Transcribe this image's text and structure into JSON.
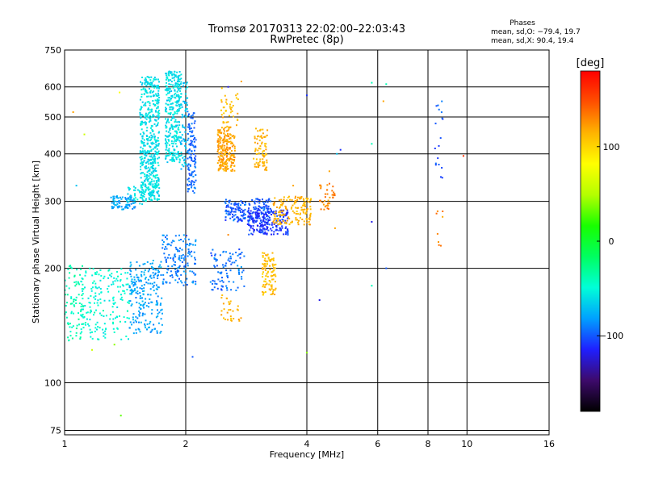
{
  "chart_data": {
    "type": "scatter",
    "title": "Tromsø 20170313 22:02:00–22:03:43",
    "subtitle": "RwPretec (8p)",
    "xlabel": "Frequency [MHz]",
    "ylabel": "Stationary phase Virtual Height [km]",
    "x_scale": "log",
    "y_scale": "log",
    "xlim": [
      1,
      16
    ],
    "ylim": [
      73,
      750
    ],
    "x_ticks": [
      1,
      2,
      4,
      6,
      8,
      10,
      16
    ],
    "y_ticks": [
      75,
      100,
      200,
      300,
      400,
      500,
      600,
      750
    ],
    "grid": true,
    "stats": {
      "heading": "Phases",
      "line1": "mean, sd,O: −79.4, 19.7",
      "line2": "mean, sd,X:  90.4, 19.4"
    },
    "colorbar": {
      "label": "[deg]",
      "range": [
        -180,
        180
      ],
      "ticks": [
        100,
        0,
        -100
      ],
      "tick_labels": [
        "100",
        "0",
        "−100"
      ],
      "colors": [
        "#000000",
        "#3d0a6b",
        "#1f1fff",
        "#00a0ff",
        "#00ffd8",
        "#00ff60",
        "#18ff00",
        "#b4ff00",
        "#ffff00",
        "#ffb400",
        "#ff5000",
        "#ff0000"
      ]
    },
    "clusters": [
      {
        "x": [
          1.54,
          1.72
        ],
        "y": [
          300,
          640
        ],
        "phase": -60,
        "n": 520
      },
      {
        "x": [
          1.78,
          1.95
        ],
        "y": [
          380,
          660
        ],
        "phase": -60,
        "n": 320
      },
      {
        "x": [
          1.94,
          2.02
        ],
        "y": [
          350,
          620
        ],
        "phase": -70,
        "n": 60
      },
      {
        "x": [
          2.02,
          2.12
        ],
        "y": [
          310,
          520
        ],
        "phase": -95,
        "n": 120
      },
      {
        "x": [
          2.4,
          2.65
        ],
        "y": [
          360,
          470
        ],
        "phase": 120,
        "n": 220
      },
      {
        "x": [
          2.45,
          2.7
        ],
        "y": [
          470,
          600
        ],
        "phase": 110,
        "n": 40
      },
      {
        "x": [
          2.95,
          3.2
        ],
        "y": [
          360,
          470
        ],
        "phase": 115,
        "n": 80
      },
      {
        "x": [
          1.3,
          1.5
        ],
        "y": [
          285,
          310
        ],
        "phase": -80,
        "n": 80
      },
      {
        "x": [
          1.43,
          1.62
        ],
        "y": [
          295,
          330
        ],
        "phase": -60,
        "n": 40
      },
      {
        "x": [
          2.5,
          3.25
        ],
        "y": [
          265,
          305
        ],
        "phase": -100,
        "n": 200
      },
      {
        "x": [
          2.85,
          3.6
        ],
        "y": [
          245,
          285
        ],
        "phase": -110,
        "n": 200
      },
      {
        "x": [
          3.3,
          4.1
        ],
        "y": [
          260,
          310
        ],
        "phase": 115,
        "n": 150
      },
      {
        "x": [
          4.3,
          4.7
        ],
        "y": [
          285,
          335
        ],
        "phase": 130,
        "n": 40
      },
      {
        "x": [
          1.0,
          1.12
        ],
        "y": [
          128,
          205
        ],
        "phase": -40,
        "n": 90
      },
      {
        "x": [
          1.1,
          1.45
        ],
        "y": [
          130,
          200
        ],
        "phase": -50,
        "n": 180
      },
      {
        "x": [
          1.45,
          1.75
        ],
        "y": [
          135,
          210
        ],
        "phase": -80,
        "n": 220
      },
      {
        "x": [
          1.75,
          2.12
        ],
        "y": [
          180,
          245
        ],
        "phase": -90,
        "n": 150
      },
      {
        "x": [
          2.3,
          2.8
        ],
        "y": [
          175,
          225
        ],
        "phase": -95,
        "n": 90
      },
      {
        "x": [
          3.1,
          3.35
        ],
        "y": [
          170,
          220
        ],
        "phase": 110,
        "n": 100
      },
      {
        "x": [
          2.45,
          2.75
        ],
        "y": [
          145,
          170
        ],
        "phase": 115,
        "n": 30
      },
      {
        "x": [
          8.3,
          8.75
        ],
        "y": [
          330,
          550
        ],
        "phase": -100,
        "n": 18
      },
      {
        "x": [
          8.4,
          8.75
        ],
        "y": [
          225,
          300
        ],
        "phase": 130,
        "n": 8
      }
    ],
    "points": [
      {
        "x": 1.05,
        "y": 515,
        "phase": 120
      },
      {
        "x": 1.12,
        "y": 450,
        "phase": 60
      },
      {
        "x": 1.07,
        "y": 330,
        "phase": -70
      },
      {
        "x": 1.37,
        "y": 580,
        "phase": 80
      },
      {
        "x": 1.95,
        "y": 365,
        "phase": -80
      },
      {
        "x": 2.75,
        "y": 620,
        "phase": 120
      },
      {
        "x": 2.55,
        "y": 600,
        "phase": -120
      },
      {
        "x": 4.0,
        "y": 570,
        "phase": -110
      },
      {
        "x": 5.8,
        "y": 615,
        "phase": -40
      },
      {
        "x": 6.3,
        "y": 610,
        "phase": -40
      },
      {
        "x": 6.2,
        "y": 550,
        "phase": 120
      },
      {
        "x": 5.8,
        "y": 425,
        "phase": -40
      },
      {
        "x": 4.85,
        "y": 410,
        "phase": -110
      },
      {
        "x": 4.75,
        "y": 400,
        "phase": -70
      },
      {
        "x": 4.55,
        "y": 360,
        "phase": 120
      },
      {
        "x": 9.8,
        "y": 395,
        "phase": 160
      },
      {
        "x": 5.8,
        "y": 265,
        "phase": -120
      },
      {
        "x": 5.8,
        "y": 180,
        "phase": -40
      },
      {
        "x": 6.3,
        "y": 200,
        "phase": -100
      },
      {
        "x": 4.7,
        "y": 255,
        "phase": 120
      },
      {
        "x": 4.0,
        "y": 120,
        "phase": 40
      },
      {
        "x": 4.3,
        "y": 165,
        "phase": -120
      },
      {
        "x": 1.38,
        "y": 82,
        "phase": 30
      },
      {
        "x": 2.08,
        "y": 117,
        "phase": -100
      },
      {
        "x": 1.33,
        "y": 126,
        "phase": 40
      },
      {
        "x": 1.17,
        "y": 122,
        "phase": 60
      },
      {
        "x": 3.7,
        "y": 330,
        "phase": 120
      },
      {
        "x": 2.55,
        "y": 245,
        "phase": 130
      }
    ]
  }
}
